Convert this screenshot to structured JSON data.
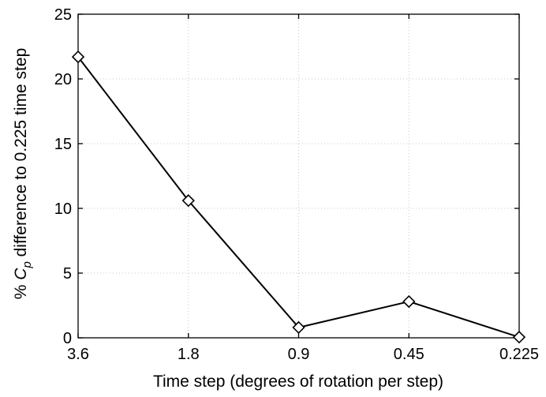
{
  "chart_data": {
    "type": "line",
    "title": "",
    "xlabel": "Time step (degrees of rotation per step)",
    "ylabel_parts": [
      "% ",
      "C",
      "p",
      " difference to 0.225 time step"
    ],
    "categories": [
      "3.6",
      "1.8",
      "0.9",
      "0.45",
      "0.225"
    ],
    "values": [
      21.7,
      10.6,
      0.8,
      2.8,
      0.05
    ],
    "ylim": [
      0,
      25
    ],
    "yticks": [
      "0",
      "5",
      "10",
      "15",
      "20",
      "25"
    ],
    "grid": true,
    "marker": "diamond",
    "line_color": "#000000"
  }
}
